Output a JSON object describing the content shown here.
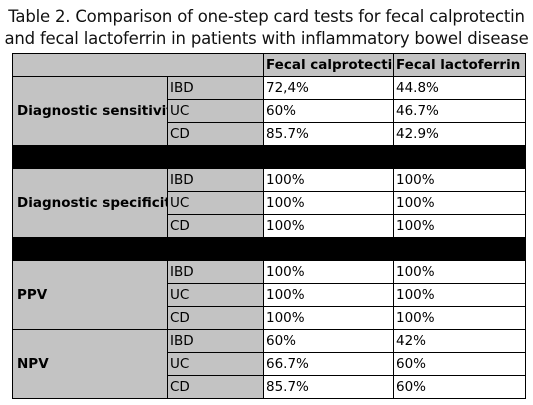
{
  "title": [
    "Table 2. Comparison of one-step card tests for fecal calprotectin",
    "and fecal lactoferrin in patients with inflammatory bowel disease"
  ],
  "table": {
    "columns": [
      "Fecal calprotectin",
      "Fecal lactoferrin"
    ],
    "groups": [
      {
        "label": "Diagnostic sensitivity",
        "divider_after": true,
        "rows": [
          [
            "IBD",
            "72,4%",
            "44.8%"
          ],
          [
            "UC",
            "60%",
            "46.7%"
          ],
          [
            "CD",
            "85.7%",
            "42.9%"
          ]
        ]
      },
      {
        "label": "Diagnostic specificity",
        "divider_after": true,
        "rows": [
          [
            "IBD",
            "100%",
            "100%"
          ],
          [
            "UC",
            "100%",
            "100%"
          ],
          [
            "CD",
            "100%",
            "100%"
          ]
        ]
      },
      {
        "label": "PPV",
        "divider_after": false,
        "rows": [
          [
            "IBD",
            "100%",
            "100%"
          ],
          [
            "UC",
            "100%",
            "100%"
          ],
          [
            "CD",
            "100%",
            "100%"
          ]
        ]
      },
      {
        "label": "NPV",
        "divider_after": false,
        "rows": [
          [
            "IBD",
            "60%",
            "42%"
          ],
          [
            "UC",
            "66.7%",
            "60%"
          ],
          [
            "CD",
            "85.7%",
            "60%"
          ]
        ]
      }
    ]
  }
}
